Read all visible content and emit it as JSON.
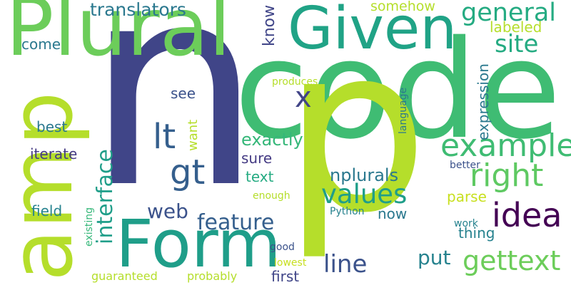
{
  "words": [
    {
      "text": "n",
      "color": "#404588"
    },
    {
      "text": "code",
      "color": "#3fbc73"
    },
    {
      "text": "p",
      "color": "#b5de2b"
    },
    {
      "text": "amp",
      "color": "#b5de2b"
    },
    {
      "text": "Plural",
      "color": "#6ccd5a"
    },
    {
      "text": "Given",
      "color": "#20a386"
    },
    {
      "text": "Form",
      "color": "#1f9e89"
    },
    {
      "text": "idea",
      "color": "#440154"
    },
    {
      "text": "right",
      "color": "#5ec962"
    },
    {
      "text": "example",
      "color": "#3fbc73"
    },
    {
      "text": "values",
      "color": "#1f9e89"
    },
    {
      "text": "gettext",
      "color": "#6ccd5a"
    },
    {
      "text": "feature",
      "color": "#355f8d"
    },
    {
      "text": "interface",
      "color": "#1f9e89"
    },
    {
      "text": "lt",
      "color": "#355f8d"
    },
    {
      "text": "gt",
      "color": "#355f8d"
    },
    {
      "text": "x",
      "color": "#414487"
    },
    {
      "text": "general",
      "color": "#25ab82"
    },
    {
      "text": "translators",
      "color": "#2a788e"
    },
    {
      "text": "site",
      "color": "#25ab82"
    },
    {
      "text": "line",
      "color": "#3b528b"
    },
    {
      "text": "web",
      "color": "#3b528b"
    },
    {
      "text": "put",
      "color": "#26828e"
    },
    {
      "text": "nplurals",
      "color": "#2a788e"
    },
    {
      "text": "exactly",
      "color": "#35b779"
    },
    {
      "text": "know",
      "color": "#404588"
    },
    {
      "text": "expression",
      "color": "#2a788e"
    },
    {
      "text": "somehow",
      "color": "#b5de2b"
    },
    {
      "text": "labeled",
      "color": "#b5de2b"
    },
    {
      "text": "come",
      "color": "#2a788e"
    },
    {
      "text": "best",
      "color": "#2a788e"
    },
    {
      "text": "iterate",
      "color": "#443a83"
    },
    {
      "text": "see",
      "color": "#3b528b"
    },
    {
      "text": "want",
      "color": "#b5de2b"
    },
    {
      "text": "sure",
      "color": "#443a83"
    },
    {
      "text": "text",
      "color": "#25ab82"
    },
    {
      "text": "field",
      "color": "#26828e"
    },
    {
      "text": "first",
      "color": "#404588"
    },
    {
      "text": "thing",
      "color": "#26828e"
    },
    {
      "text": "now",
      "color": "#2a788e"
    },
    {
      "text": "parse",
      "color": "#c8e020"
    },
    {
      "text": "produces",
      "color": "#b5de2b"
    },
    {
      "text": "language",
      "color": "#2a788e"
    },
    {
      "text": "better",
      "color": "#3b528b"
    },
    {
      "text": "enough",
      "color": "#b5de2b"
    },
    {
      "text": "existing",
      "color": "#35b779"
    },
    {
      "text": "Python",
      "color": "#26828e"
    },
    {
      "text": "work",
      "color": "#26828e"
    },
    {
      "text": "good",
      "color": "#3b528b"
    },
    {
      "text": "lowest",
      "color": "#c8e020"
    },
    {
      "text": "guaranteed",
      "color": "#b5de2b"
    },
    {
      "text": "probably",
      "color": "#b5de2b"
    }
  ]
}
